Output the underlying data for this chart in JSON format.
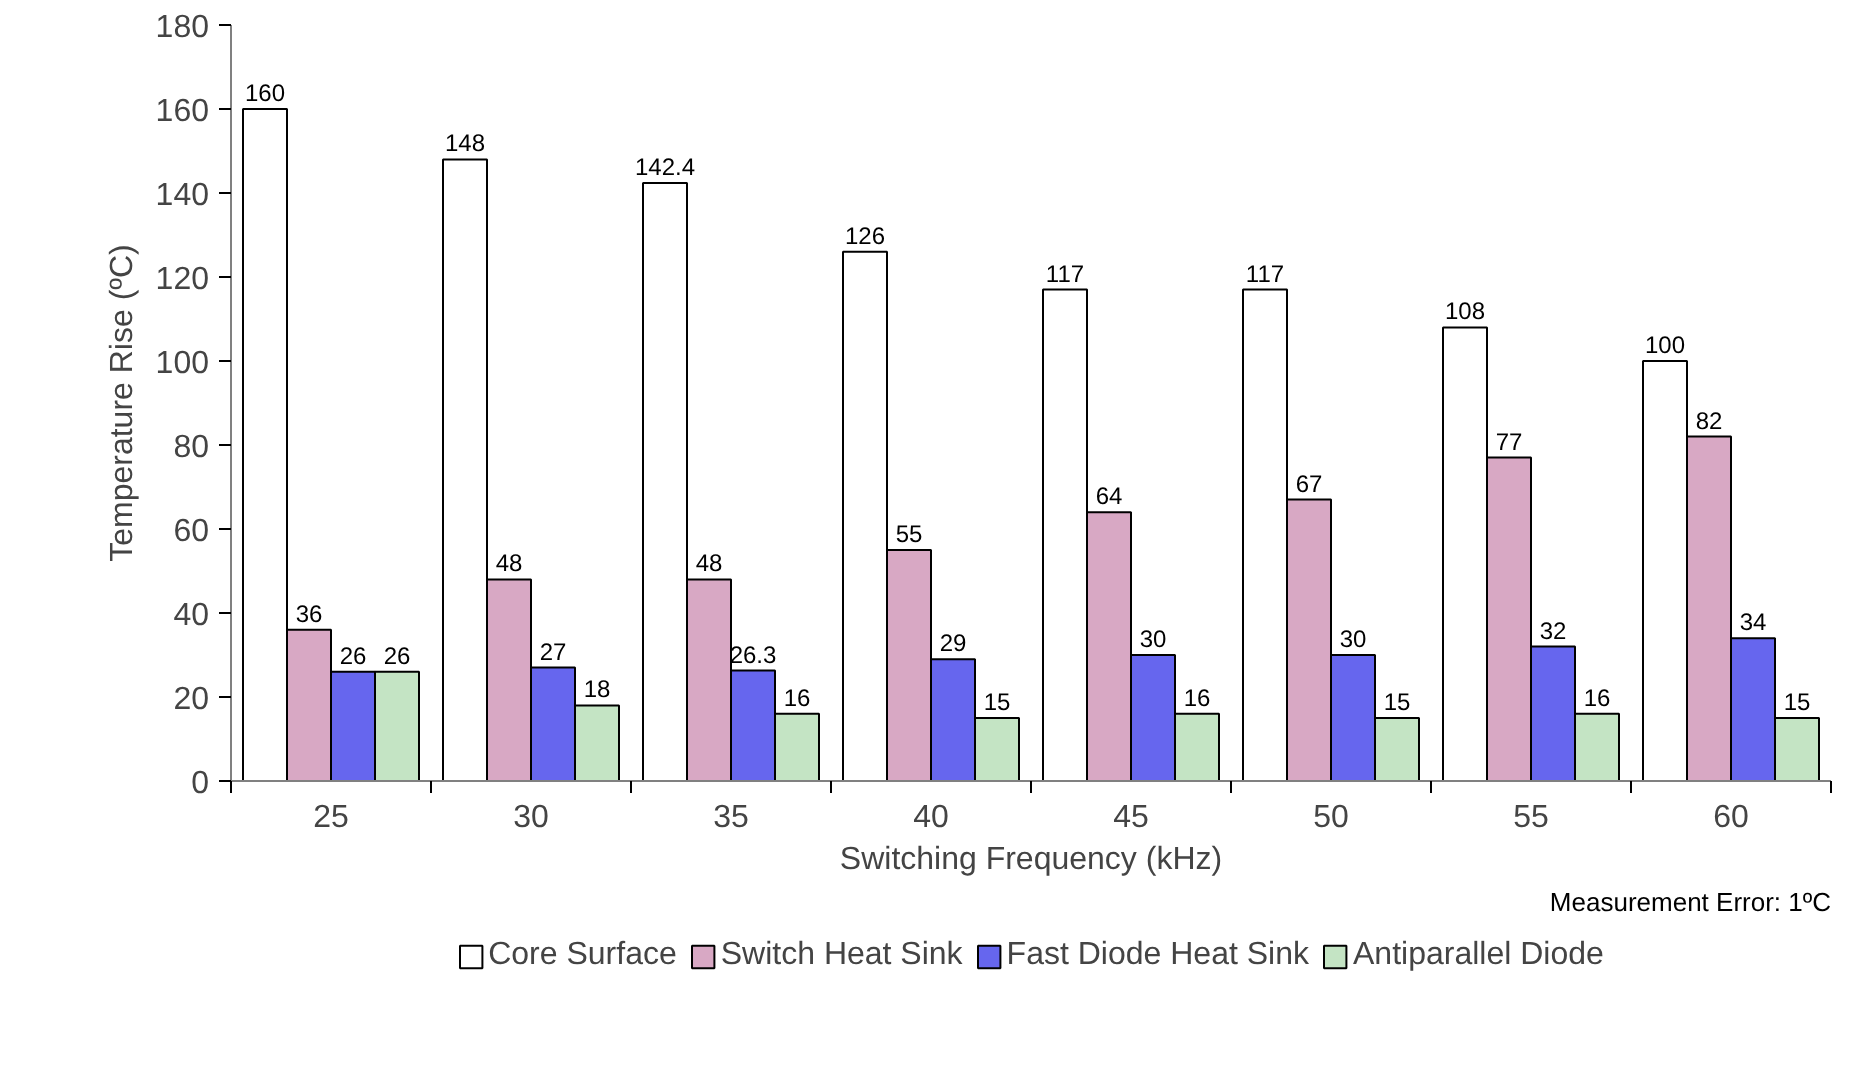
{
  "chart_data": {
    "type": "bar",
    "xlabel": "Switching Frequency (kHz)",
    "ylabel": "Temperature Rise (ºC)",
    "categories": [
      "25",
      "30",
      "35",
      "40",
      "45",
      "50",
      "55",
      "60"
    ],
    "series": [
      {
        "name": "Core Surface",
        "color": "#ffffff",
        "values": [
          160,
          148,
          142.4,
          126,
          117,
          117,
          108,
          100
        ]
      },
      {
        "name": "Switch Heat Sink",
        "color": "#d8a8c4",
        "values": [
          36,
          48,
          48,
          55,
          64,
          67,
          77,
          82
        ]
      },
      {
        "name": "Fast Diode Heat Sink",
        "color": "#6666ee",
        "values": [
          26,
          27,
          26.3,
          29,
          30,
          30,
          32,
          34
        ]
      },
      {
        "name": "Antiparallel Diode",
        "color": "#c4e4c4",
        "values": [
          26,
          18,
          16,
          15,
          16,
          15,
          16,
          15
        ]
      }
    ],
    "ylim": [
      0,
      180
    ],
    "yticks": [
      0,
      20,
      40,
      60,
      80,
      100,
      120,
      140,
      160,
      180
    ],
    "data_labels": true,
    "grid": false,
    "legend": "bottom",
    "annotations": [
      "Measurement Error: 1ºC"
    ]
  }
}
